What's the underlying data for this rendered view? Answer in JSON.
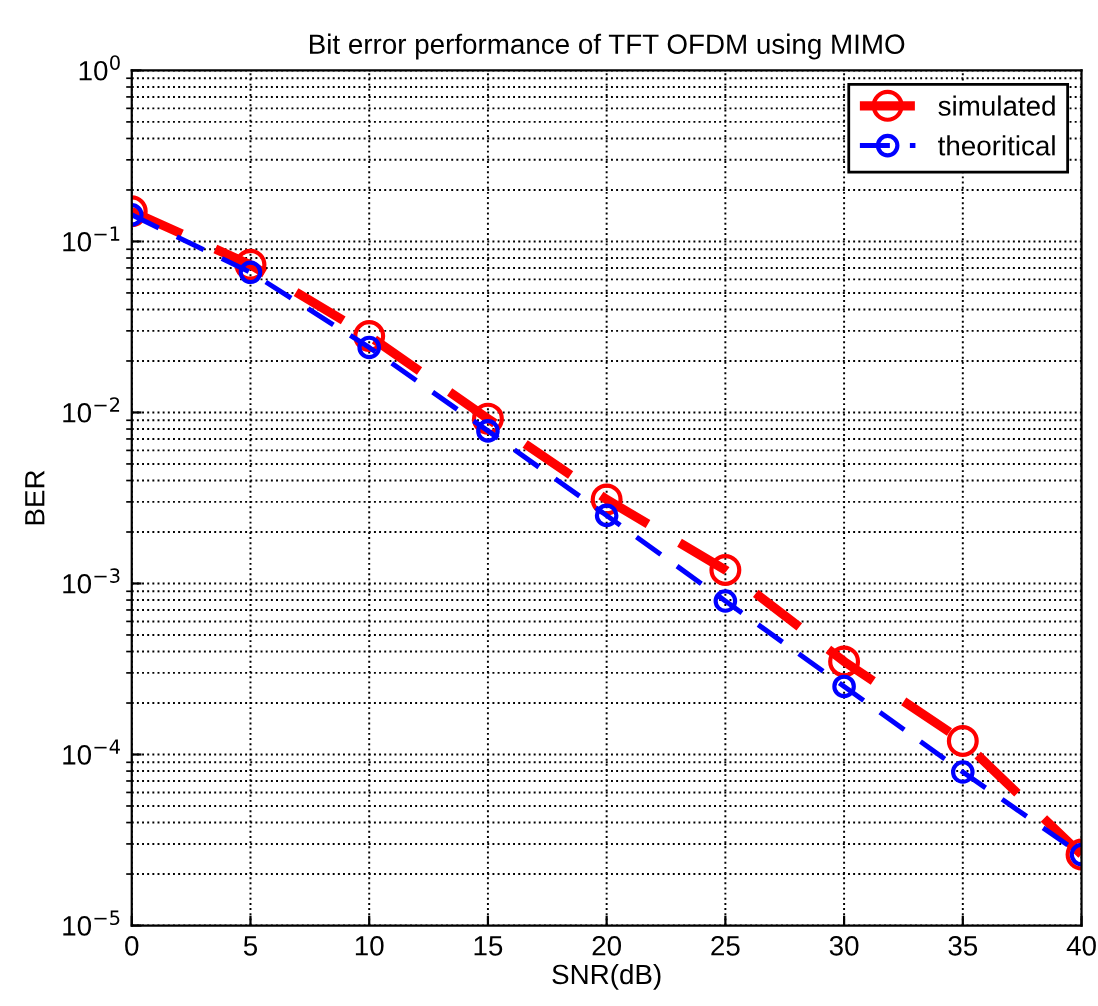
{
  "chart_data": {
    "type": "line",
    "title": "Bit error performance of TFT OFDM using MIMO",
    "xlabel": "SNR(dB)",
    "ylabel": "BER",
    "x": [
      0,
      5,
      10,
      15,
      20,
      25,
      30,
      35,
      40
    ],
    "series": [
      {
        "name": "simulated",
        "color": "#ff0000",
        "values": [
          0.15,
          0.073,
          0.028,
          0.0092,
          0.0031,
          0.0012,
          0.00035,
          0.00012,
          2.6e-05
        ]
      },
      {
        "name": "theoritical",
        "color": "#0000ff",
        "values": [
          0.143,
          0.066,
          0.024,
          0.0078,
          0.0025,
          0.00079,
          0.00025,
          7.9e-05,
          2.6e-05
        ]
      }
    ],
    "log": "y",
    "xlim": [
      0,
      40
    ],
    "ylim": [
      1e-05,
      1
    ],
    "xticks": [
      0,
      5,
      10,
      15,
      20,
      25,
      30,
      35,
      40
    ],
    "yticks": [
      {
        "value": 1e-05,
        "label": "10$^{−5}$"
      },
      {
        "value": 0.0001,
        "label": "10$^{−4}$"
      },
      {
        "value": 0.001,
        "label": "10$^{−3}$"
      },
      {
        "value": 0.01,
        "label": "10$^{−2}$"
      },
      {
        "value": 0.1,
        "label": "10$^{−1}$"
      },
      {
        "value": 1,
        "label": "10$^{0}$"
      }
    ],
    "grid": true,
    "legend": "top right",
    "marker": "circle",
    "line_style": "dashed"
  }
}
